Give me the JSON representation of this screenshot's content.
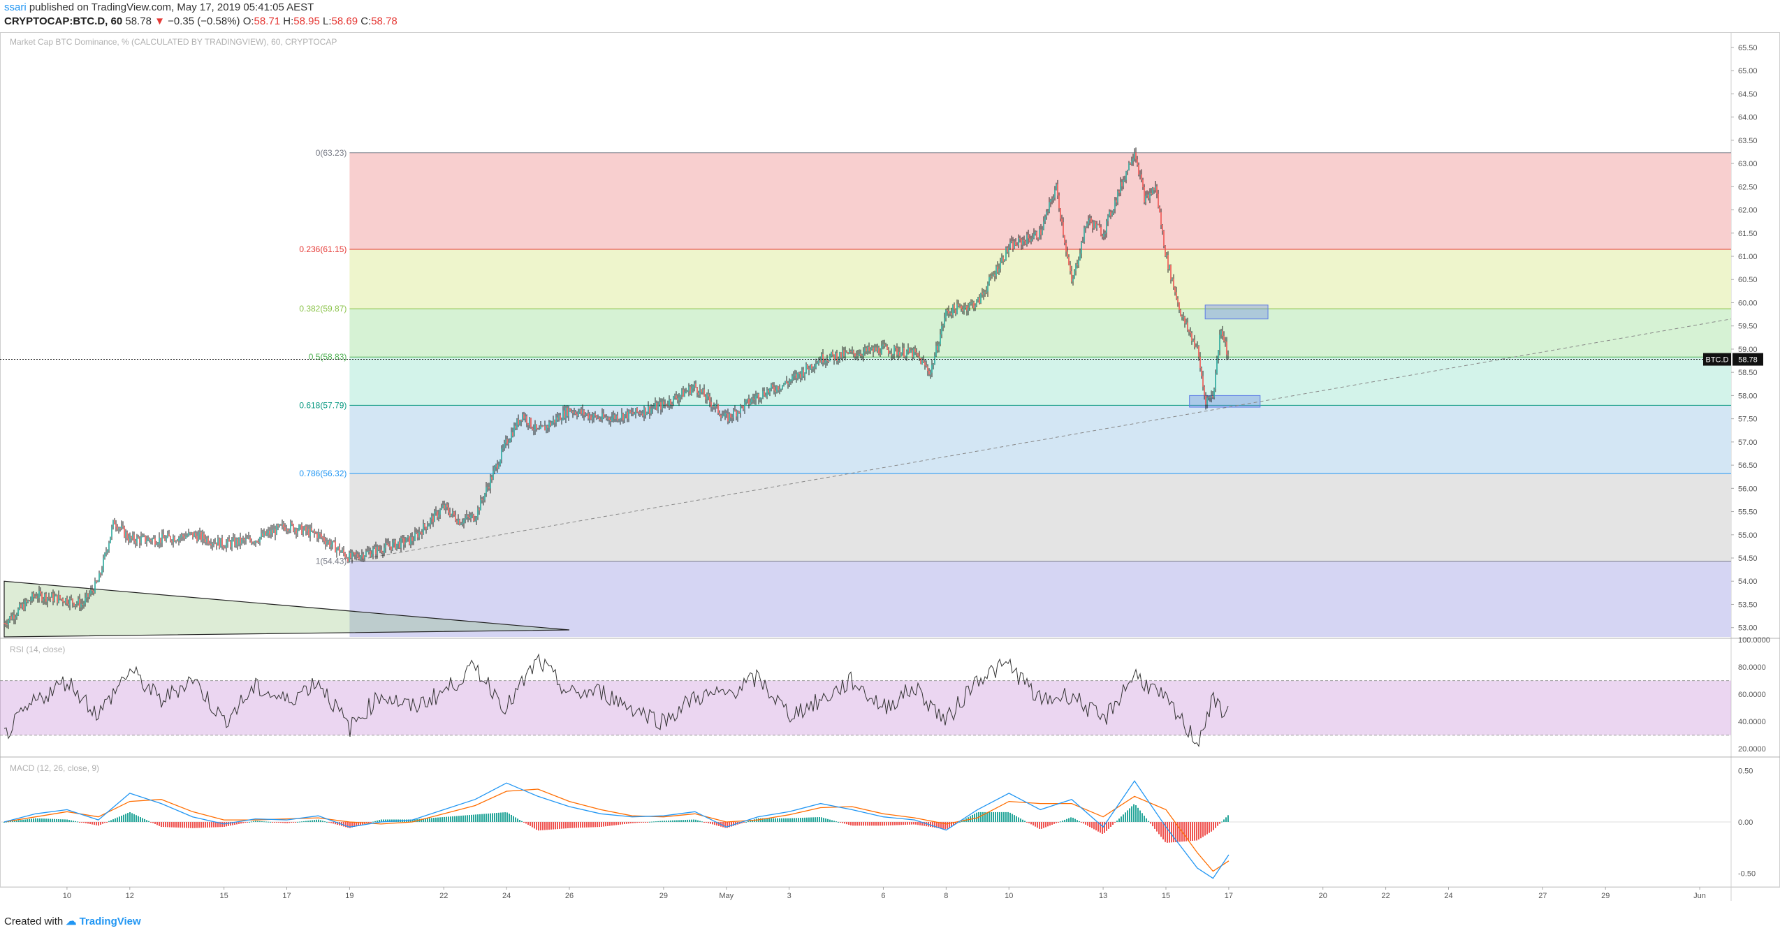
{
  "header": {
    "user": "ssari",
    "published": "published on TradingView.com, May 17, 2019 05:41:05 AEST",
    "symbol": "CRYPTOCAP:BTC.D, 60",
    "last": "58.78",
    "change": "−0.35 (−0.58%)",
    "o_label": "O:",
    "o_value": "58.71",
    "h_label": "H:",
    "h_value": "58.95",
    "l_label": "L:",
    "l_value": "58.69",
    "c_label": "C:",
    "c_value": "58.78"
  },
  "footer": {
    "created_with": "Created with",
    "brand": "TradingView"
  },
  "colors": {
    "up": "#26a69a",
    "down": "#ef5350",
    "macd": "#2196f3",
    "signal": "#ff6d00",
    "rsi": "#333333"
  },
  "chart_data": [
    {
      "type": "line",
      "title": "Market Cap BTC Dominance, % (CALCULATED BY TRADINGVIEW), 60, CRYPTOCAP",
      "price_tag": "BTC.D",
      "last_value": "58.78",
      "x_ticks": [
        "10",
        "12",
        "15",
        "17",
        "19",
        "22",
        "24",
        "26",
        "29",
        "May",
        "3",
        "6",
        "8",
        "10",
        "13",
        "15",
        "17",
        "20",
        "22",
        "24",
        "27",
        "29",
        "Jun"
      ],
      "x_dates": [
        "2019-04-10",
        "2019-04-12",
        "2019-04-15",
        "2019-04-17",
        "2019-04-19",
        "2019-04-22",
        "2019-04-24",
        "2019-04-26",
        "2019-04-29",
        "2019-05-01",
        "2019-05-03",
        "2019-05-06",
        "2019-05-08",
        "2019-05-10",
        "2019-05-13",
        "2019-05-15",
        "2019-05-17",
        "2019-05-20",
        "2019-05-22",
        "2019-05-24",
        "2019-05-27",
        "2019-05-29",
        "2019-06-01"
      ],
      "xlim": [
        "2019-04-08",
        "2019-06-02"
      ],
      "y_ticks": [
        "65.50",
        "65.00",
        "64.50",
        "64.00",
        "63.50",
        "63.00",
        "62.50",
        "62.00",
        "61.50",
        "61.00",
        "60.50",
        "60.00",
        "59.50",
        "59.00",
        "58.50",
        "58.00",
        "57.50",
        "57.00",
        "56.50",
        "56.00",
        "55.50",
        "55.00",
        "54.50",
        "54.00",
        "53.50",
        "53.00"
      ],
      "ylim": [
        52.8,
        65.8
      ],
      "price_path": {
        "x": [
          "2019-04-08",
          "2019-04-09",
          "2019-04-10",
          "2019-04-10T12",
          "2019-04-11",
          "2019-04-11T12",
          "2019-04-12",
          "2019-04-13",
          "2019-04-14",
          "2019-04-15",
          "2019-04-16",
          "2019-04-17",
          "2019-04-18",
          "2019-04-19",
          "2019-04-20",
          "2019-04-21",
          "2019-04-22",
          "2019-04-22T12",
          "2019-04-23",
          "2019-04-24",
          "2019-04-24T12",
          "2019-04-25",
          "2019-04-26",
          "2019-04-27",
          "2019-04-28",
          "2019-04-29",
          "2019-04-30",
          "2019-05-01",
          "2019-05-02",
          "2019-05-03",
          "2019-05-04",
          "2019-05-05",
          "2019-05-06",
          "2019-05-07",
          "2019-05-07T12",
          "2019-05-08",
          "2019-05-09",
          "2019-05-10",
          "2019-05-11",
          "2019-05-11T12",
          "2019-05-12",
          "2019-05-12T12",
          "2019-05-13",
          "2019-05-14",
          "2019-05-14T08",
          "2019-05-14T16",
          "2019-05-15",
          "2019-05-15T12",
          "2019-05-16",
          "2019-05-16T06",
          "2019-05-16T12",
          "2019-05-16T18",
          "2019-05-17"
        ],
        "y": [
          53.1,
          53.7,
          53.6,
          53.5,
          54.0,
          55.3,
          54.9,
          54.9,
          55.0,
          54.8,
          54.9,
          55.2,
          55.0,
          54.5,
          54.7,
          54.9,
          55.6,
          55.3,
          55.4,
          57.0,
          57.6,
          57.2,
          57.7,
          57.5,
          57.6,
          57.8,
          58.2,
          57.5,
          58.0,
          58.3,
          58.8,
          58.9,
          59.0,
          58.9,
          58.5,
          59.8,
          60.0,
          61.2,
          61.5,
          62.5,
          60.4,
          61.8,
          61.5,
          63.3,
          62.2,
          62.5,
          61.0,
          59.7,
          59.0,
          57.9,
          58.0,
          59.5,
          58.8
        ]
      },
      "fibonacci": [
        {
          "label": "0(63.23)",
          "level": "0",
          "value": 63.23,
          "color": "#787b86",
          "fill": "#f8cfcf"
        },
        {
          "label": "0.236(61.15)",
          "level": "0.236",
          "value": 61.15,
          "color": "#e53935",
          "fill": "#eef5cc"
        },
        {
          "label": "0.382(59.87)",
          "level": "0.382",
          "value": 59.87,
          "color": "#8bc34a",
          "fill": "#d6f2d4"
        },
        {
          "label": "0.5(58.83)",
          "level": "0.5",
          "value": 58.83,
          "color": "#4caf50",
          "fill": "#d3f3ea"
        },
        {
          "label": "0.618(57.79)",
          "level": "0.618",
          "value": 57.79,
          "color": "#089981",
          "fill": "#d3e6f4"
        },
        {
          "label": "0.786(56.32)",
          "level": "0.786",
          "value": 56.32,
          "color": "#2196f3",
          "fill": "#e4e4e4"
        },
        {
          "label": "1(54.43)",
          "level": "1",
          "value": 54.43,
          "color": "#787b86",
          "fill": "#d5d5f3"
        }
      ],
      "fib_x_start": "2019-04-19",
      "trendline": {
        "x": [
          "2019-04-19",
          "2019-06-02"
        ],
        "y": [
          54.43,
          59.65
        ]
      },
      "triangle": {
        "x": [
          "2019-04-08",
          "2019-04-08",
          "2019-04-26"
        ],
        "y": [
          54.0,
          52.8,
          52.95
        ]
      },
      "zones": [
        {
          "x": [
            "2019-05-16T06",
            "2019-05-18T06"
          ],
          "y": [
            59.65,
            59.95
          ]
        },
        {
          "x": [
            "2019-05-15T18",
            "2019-05-18"
          ],
          "y": [
            57.75,
            58.0
          ]
        }
      ]
    },
    {
      "type": "line",
      "title": "RSI (14, close)",
      "y_ticks": [
        "100.0000",
        "80.0000",
        "60.0000",
        "40.0000",
        "20.0000"
      ],
      "ylim": [
        15,
        100
      ],
      "band": [
        30,
        70
      ],
      "path": {
        "x": [
          "2019-04-08",
          "2019-04-09",
          "2019-04-10",
          "2019-04-11",
          "2019-04-12",
          "2019-04-13",
          "2019-04-14",
          "2019-04-15",
          "2019-04-16",
          "2019-04-17",
          "2019-04-18",
          "2019-04-19",
          "2019-04-20",
          "2019-04-21",
          "2019-04-22",
          "2019-04-23",
          "2019-04-24",
          "2019-04-25",
          "2019-04-26",
          "2019-04-27",
          "2019-04-28",
          "2019-04-29",
          "2019-04-30",
          "2019-05-01",
          "2019-05-02",
          "2019-05-03",
          "2019-05-04",
          "2019-05-05",
          "2019-05-06",
          "2019-05-07",
          "2019-05-08",
          "2019-05-09",
          "2019-05-10",
          "2019-05-11",
          "2019-05-12",
          "2019-05-13",
          "2019-05-14",
          "2019-05-15",
          "2019-05-16",
          "2019-05-16T12",
          "2019-05-17"
        ],
        "y": [
          30,
          55,
          70,
          45,
          78,
          55,
          72,
          40,
          65,
          55,
          70,
          35,
          60,
          50,
          62,
          80,
          50,
          85,
          60,
          62,
          50,
          40,
          58,
          60,
          72,
          45,
          55,
          70,
          50,
          65,
          40,
          72,
          82,
          55,
          60,
          40,
          75,
          55,
          25,
          55,
          45
        ]
      }
    },
    {
      "type": "line",
      "title": "MACD (12, 26, close, 9)",
      "y_ticks": [
        "0.50",
        "0.00",
        "-0.50"
      ],
      "ylim": [
        -0.62,
        0.62
      ],
      "macd": {
        "x": [
          "2019-04-08",
          "2019-04-09",
          "2019-04-10",
          "2019-04-11",
          "2019-04-12",
          "2019-04-13",
          "2019-04-14",
          "2019-04-15",
          "2019-04-16",
          "2019-04-17",
          "2019-04-18",
          "2019-04-19",
          "2019-04-20",
          "2019-04-21",
          "2019-04-22",
          "2019-04-23",
          "2019-04-24",
          "2019-04-25",
          "2019-04-26",
          "2019-04-27",
          "2019-04-28",
          "2019-04-29",
          "2019-04-30",
          "2019-05-01",
          "2019-05-02",
          "2019-05-03",
          "2019-05-04",
          "2019-05-05",
          "2019-05-06",
          "2019-05-07",
          "2019-05-08",
          "2019-05-09",
          "2019-05-10",
          "2019-05-11",
          "2019-05-12",
          "2019-05-13",
          "2019-05-14",
          "2019-05-15",
          "2019-05-16",
          "2019-05-16T12",
          "2019-05-17"
        ],
        "y": [
          0.0,
          0.08,
          0.12,
          0.02,
          0.28,
          0.18,
          0.05,
          -0.02,
          0.03,
          0.02,
          0.06,
          -0.05,
          0.0,
          0.02,
          0.12,
          0.22,
          0.38,
          0.25,
          0.15,
          0.08,
          0.05,
          0.06,
          0.1,
          -0.05,
          0.05,
          0.1,
          0.18,
          0.12,
          0.05,
          0.02,
          -0.08,
          0.12,
          0.28,
          0.12,
          0.22,
          -0.05,
          0.4,
          -0.05,
          -0.45,
          -0.55,
          -0.32
        ]
      },
      "signal": {
        "x": [
          "2019-04-08",
          "2019-04-09",
          "2019-04-10",
          "2019-04-11",
          "2019-04-12",
          "2019-04-13",
          "2019-04-14",
          "2019-04-15",
          "2019-04-16",
          "2019-04-17",
          "2019-04-18",
          "2019-04-19",
          "2019-04-20",
          "2019-04-21",
          "2019-04-22",
          "2019-04-23",
          "2019-04-24",
          "2019-04-25",
          "2019-04-26",
          "2019-04-27",
          "2019-04-28",
          "2019-04-29",
          "2019-04-30",
          "2019-05-01",
          "2019-05-02",
          "2019-05-03",
          "2019-05-04",
          "2019-05-05",
          "2019-05-06",
          "2019-05-07",
          "2019-05-08",
          "2019-05-09",
          "2019-05-10",
          "2019-05-11",
          "2019-05-12",
          "2019-05-13",
          "2019-05-14",
          "2019-05-15",
          "2019-05-16",
          "2019-05-16T12",
          "2019-05-17"
        ],
        "y": [
          0.0,
          0.05,
          0.1,
          0.05,
          0.2,
          0.22,
          0.1,
          0.02,
          0.02,
          0.03,
          0.04,
          0.0,
          -0.02,
          0.0,
          0.08,
          0.16,
          0.3,
          0.32,
          0.2,
          0.12,
          0.06,
          0.05,
          0.08,
          0.0,
          0.02,
          0.07,
          0.14,
          0.15,
          0.08,
          0.04,
          -0.02,
          0.04,
          0.2,
          0.18,
          0.18,
          0.05,
          0.25,
          0.12,
          -0.3,
          -0.48,
          -0.38
        ]
      }
    }
  ]
}
